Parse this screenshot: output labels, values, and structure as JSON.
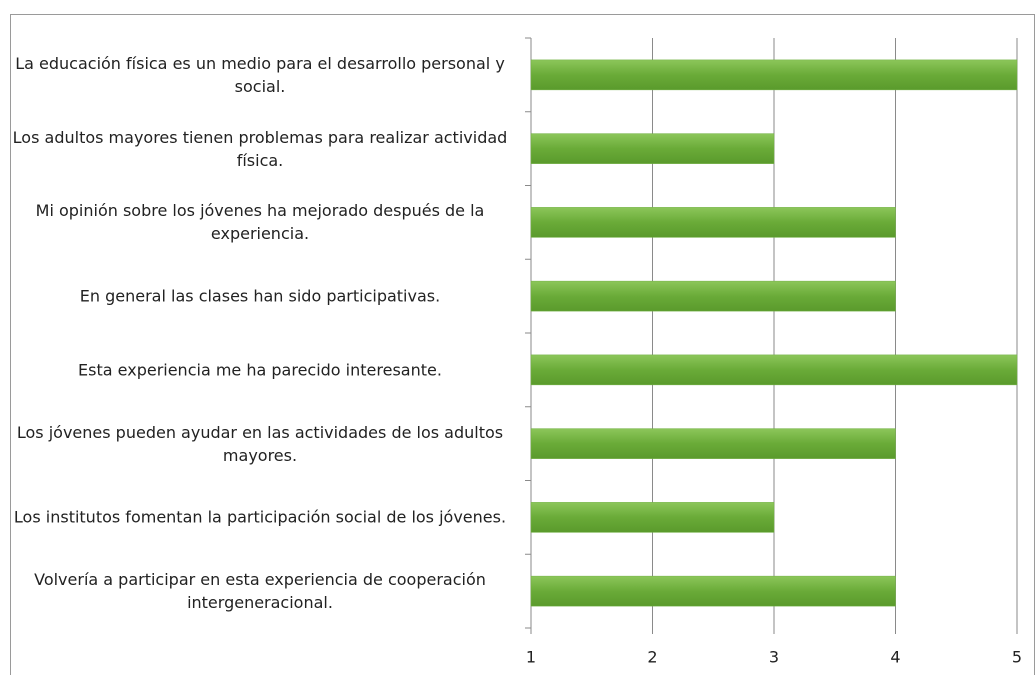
{
  "chart_data": {
    "type": "barh",
    "categories": [
      "La educación física es un medio para el desarrollo personal y social.",
      "Los adultos mayores tienen problemas para realizar actividad física.",
      "Mi opinión sobre los jóvenes ha mejorado después de la experiencia.",
      "En general las clases han sido participativas.",
      "Esta experiencia me ha parecido interesante.",
      "Los jóvenes pueden ayudar en las actividades de los adultos mayores.",
      "Los institutos fomentan la participación social de los jóvenes.",
      "Volvería a participar en esta experiencia de cooperación intergeneracional."
    ],
    "values": [
      5,
      3,
      4,
      4,
      5,
      4,
      3,
      4
    ],
    "color": "#72b043",
    "xlim": [
      1,
      5
    ],
    "xticks": [
      1,
      2,
      3,
      4,
      5
    ],
    "grid": true
  }
}
